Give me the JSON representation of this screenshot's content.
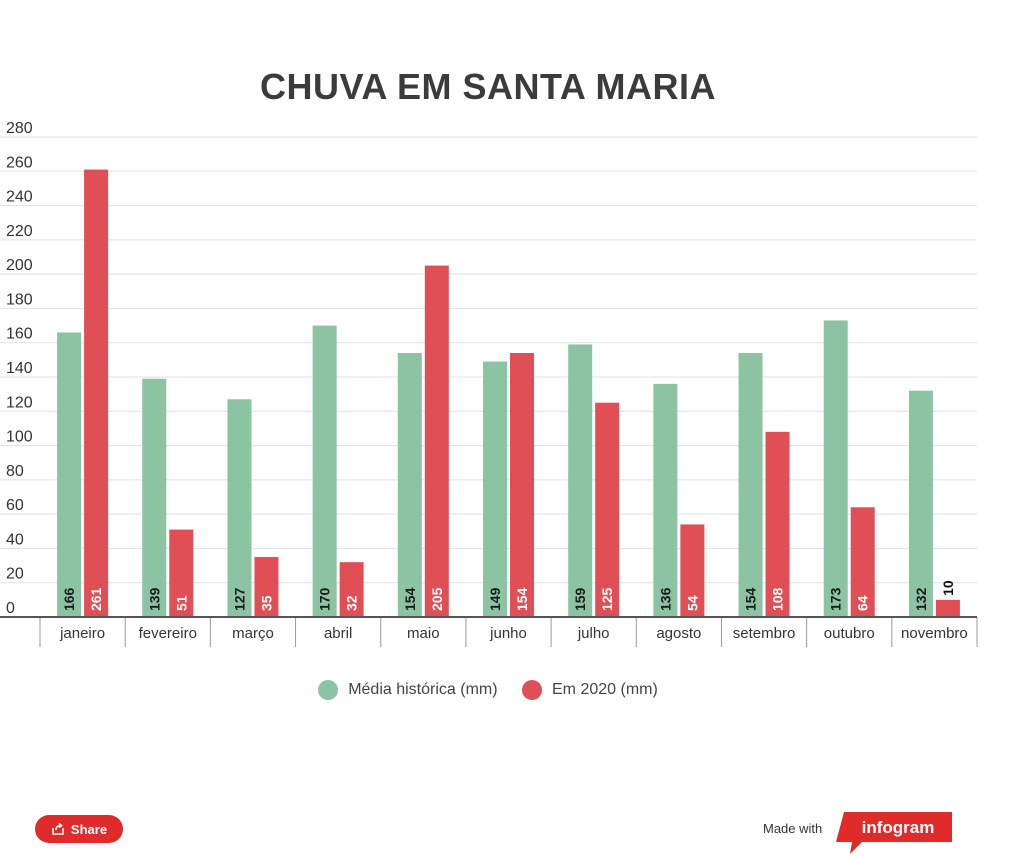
{
  "chart_data": {
    "type": "bar",
    "title": "CHUVA EM SANTA MARIA",
    "xlabel": "",
    "ylabel": "",
    "ylim": [
      0,
      280
    ],
    "yticks": [
      0,
      20,
      40,
      60,
      80,
      100,
      120,
      140,
      160,
      180,
      200,
      220,
      240,
      260,
      280
    ],
    "grid": true,
    "legend_position": "bottom",
    "categories": [
      "janeiro",
      "fevereiro",
      "março",
      "abril",
      "maio",
      "junho",
      "julho",
      "agosto",
      "setembro",
      "outubro",
      "novembro"
    ],
    "series": [
      {
        "name": "Média histórica (mm)",
        "color": "#8cc3a2",
        "values": [
          166,
          139,
          127,
          170,
          154,
          149,
          159,
          136,
          154,
          173,
          132
        ]
      },
      {
        "name": "Em 2020 (mm)",
        "color": "#e04f55",
        "values": [
          261,
          51,
          35,
          32,
          205,
          154,
          125,
          54,
          108,
          64,
          10
        ]
      }
    ]
  },
  "footer": {
    "share_label": "Share",
    "made_with_label": "Made with",
    "brand_label": "infogram",
    "brand_color": "#e02b2b"
  }
}
